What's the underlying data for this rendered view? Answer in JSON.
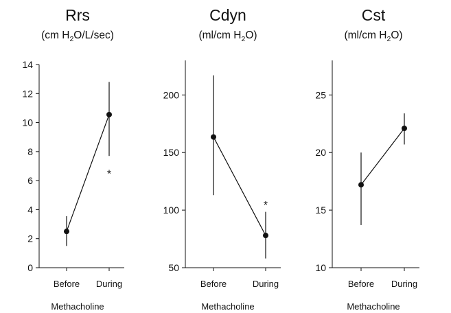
{
  "chart_data": [
    {
      "type": "line",
      "title": "Rrs",
      "subtitle": {
        "pre": "(cm H",
        "sub": "2",
        "post": "O/L/sec)"
      },
      "xlabel": "Methacholine",
      "categories": [
        "Before",
        "During"
      ],
      "ylim": [
        0,
        14
      ],
      "yticks": [
        0,
        2,
        4,
        6,
        8,
        10,
        12,
        14
      ],
      "series": [
        {
          "values": [
            2.5,
            10.55
          ],
          "err_low": [
            1.5,
            7.7
          ],
          "err_high": [
            3.55,
            12.8
          ]
        }
      ],
      "annotations": [
        {
          "text": "*",
          "category": "During",
          "y": 6.6
        }
      ]
    },
    {
      "type": "line",
      "title": "Cdyn",
      "subtitle": {
        "pre": "(ml/cm H",
        "sub": "2",
        "post": "O)"
      },
      "xlabel": "Methacholine",
      "categories": [
        "Before",
        "During"
      ],
      "ylim": [
        50,
        230
      ],
      "yticks": [
        50,
        100,
        150,
        200
      ],
      "series": [
        {
          "values": [
            163.5,
            78
          ],
          "err_low": [
            113,
            58
          ],
          "err_high": [
            217,
            98.5
          ]
        }
      ],
      "annotations": [
        {
          "text": "*",
          "category": "During",
          "y": 106
        }
      ]
    },
    {
      "type": "line",
      "title": "Cst",
      "subtitle": {
        "pre": "(ml/cm H",
        "sub": "2",
        "post": "O)"
      },
      "xlabel": "Methacholine",
      "categories": [
        "Before",
        "During"
      ],
      "ylim": [
        10,
        28
      ],
      "yticks": [
        10,
        15,
        20,
        25
      ],
      "series": [
        {
          "values": [
            17.2,
            22.1
          ],
          "err_low": [
            13.7,
            20.7
          ],
          "err_high": [
            20.0,
            23.4
          ]
        }
      ],
      "annotations": []
    }
  ]
}
